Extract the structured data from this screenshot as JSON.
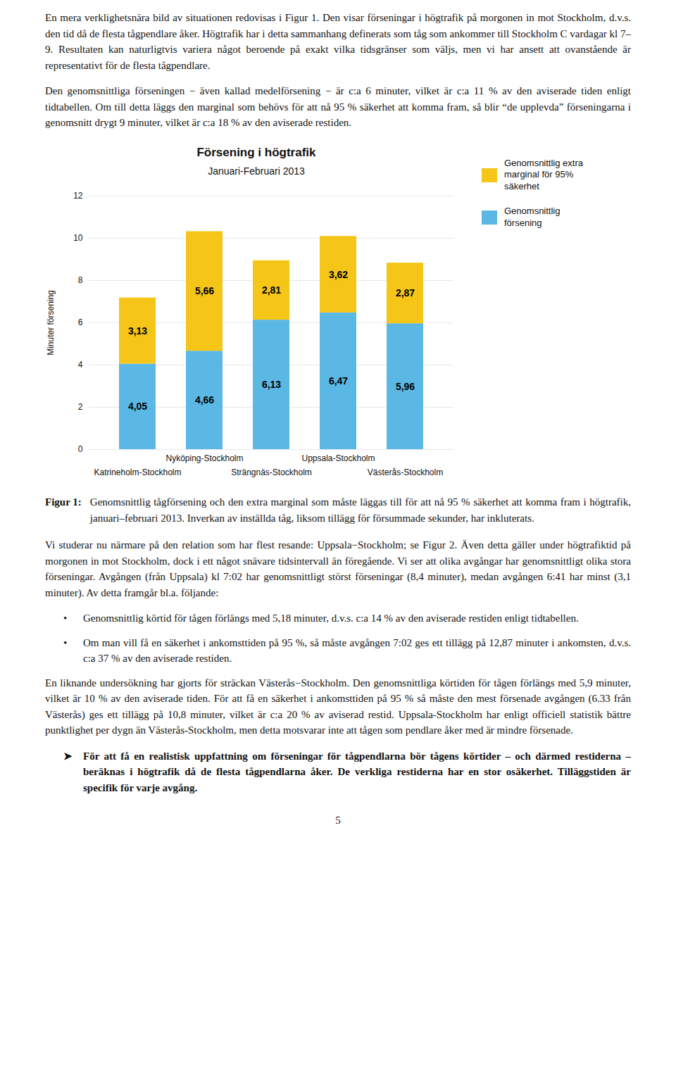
{
  "paragraphs_above": [
    "En mera verklighetsnära bild av situationen redovisas i Figur 1. Den visar förseningar i högtrafik på morgonen in mot Stockholm, d.v.s. den tid då de flesta tågpendlare åker. Högtrafik har i detta sammanhang definerats som tåg som ankommer till Stockholm C vardagar kl 7–9. Resultaten kan naturligtvis variera något beroende på exakt vilka tidsgränser som väljs, men vi har ansett att ovanstående är representativt för de flesta tågpendlare.",
    "Den genomsnittliga förseningen − även kallad medelförsening − är c:a 6 minuter, vilket är c:a 11 % av den aviserade tiden enligt tidtabellen. Om till detta läggs den marginal som behövs för att nå 95 % säkerhet att komma fram, så blir “de upplevda” förseningarna i genomsnitt drygt 9 minuter, vilket är c:a 18 % av den aviserade restiden."
  ],
  "chart_data": {
    "type": "bar",
    "title": "Försening i högtrafik",
    "subtitle": "Januari-Februari 2013",
    "ylabel": "Minuter försening",
    "categories": [
      "Katrineholm-Stockholm",
      "Nyköping-Stockholm",
      "Strängnäs-Stockholm",
      "Uppsala-Stockholm",
      "Västerås-Stockholm"
    ],
    "stacked": true,
    "series": [
      {
        "name": "Genomsnittlig\nförsening",
        "color": "#5BB8E5",
        "values": [
          4.05,
          4.66,
          6.13,
          6.47,
          5.96
        ],
        "value_labels": [
          "4,05",
          "4,66",
          "6,13",
          "6,47",
          "5,96"
        ]
      },
      {
        "name": "Genomsnittlig extra\nmarginal för 95%\nsäkerhet",
        "color": "#F5C518",
        "values": [
          3.13,
          5.66,
          2.81,
          3.62,
          2.87
        ],
        "value_labels": [
          "3,13",
          "5,66",
          "2,81",
          "3,62",
          "2,87"
        ]
      }
    ],
    "ylim": [
      0,
      12
    ],
    "yticks": [
      0,
      2,
      4,
      6,
      8,
      10,
      12
    ],
    "grid": true,
    "data_labels": true,
    "legend": "right"
  },
  "caption": {
    "label": "Figur 1:",
    "text": "Genomsnittlig tågförsening och den extra marginal som måste läggas till för att nå 95 % säkerhet att komma fram i högtrafik, januari–februari 2013. Inverkan av inställda tåg, liksom tillägg för försummade sekunder, har inkluterats."
  },
  "paragraphs_below": [
    {
      "text": "Vi studerar nu närmare på den relation som har flest resande: Uppsala−Stockholm; se Figur 2. Även detta gäller under högtrafiktid på morgonen in mot Stockholm, dock i ett något snävare tidsintervall än föregående. Vi ser att olika avgångar har genomsnittligt olika stora förseningar. Avgången (från Uppsala) kl 7:02 har genomsnittligt störst förseningar (8,4 minuter), medan avgången 6:41 har minst (3,1 minuter). Av detta framgår bl.a. följande:"
    },
    {
      "bullet": "•",
      "text": "Genomsnittlig körtid för tågen förlängs med 5,18 minuter, d.v.s. c:a 14 % av den aviserade restiden enligt tidtabellen."
    },
    {
      "bullet": "•",
      "text": "Om man vill få en säkerhet i ankomsttiden på 95 %, så måste avgången 7:02 ges ett tillägg på 12,87 minuter i ankomsten, d.v.s. c:a 37 % av den aviserade restiden."
    },
    {
      "text": "En liknande undersökning har gjorts för sträckan Västerås−Stockholm. Den genomsnittliga körtiden för tågen förlängs med 5,9 minuter, vilket är 10 % av den aviserade tiden. För att få en säkerhet i ankomsttiden på 95 % så måste den mest försenade avgången (6.33 från Västerås) ges ett tillägg på 10,8 minuter, vilket är c:a 20 % av aviserad restid. Uppsala-Stockholm har enligt officiell statistik bättre punktlighet per dygn än Västerås-Stockholm, men detta motsvarar inte att tågen som pendlare åker med är mindre försenade."
    },
    {
      "bullet": "➤",
      "bold": true,
      "text": "För att få en realistisk uppfattning om förseningar för tågpendlarna bör tågens körtider – och därmed restiderna – beräknas i högtrafik då de flesta tågpendlarna åker. De verkliga restiderna har en stor osäkerhet. Tilläggstiden är specifik för varje avgång."
    }
  ],
  "page_number": "5"
}
